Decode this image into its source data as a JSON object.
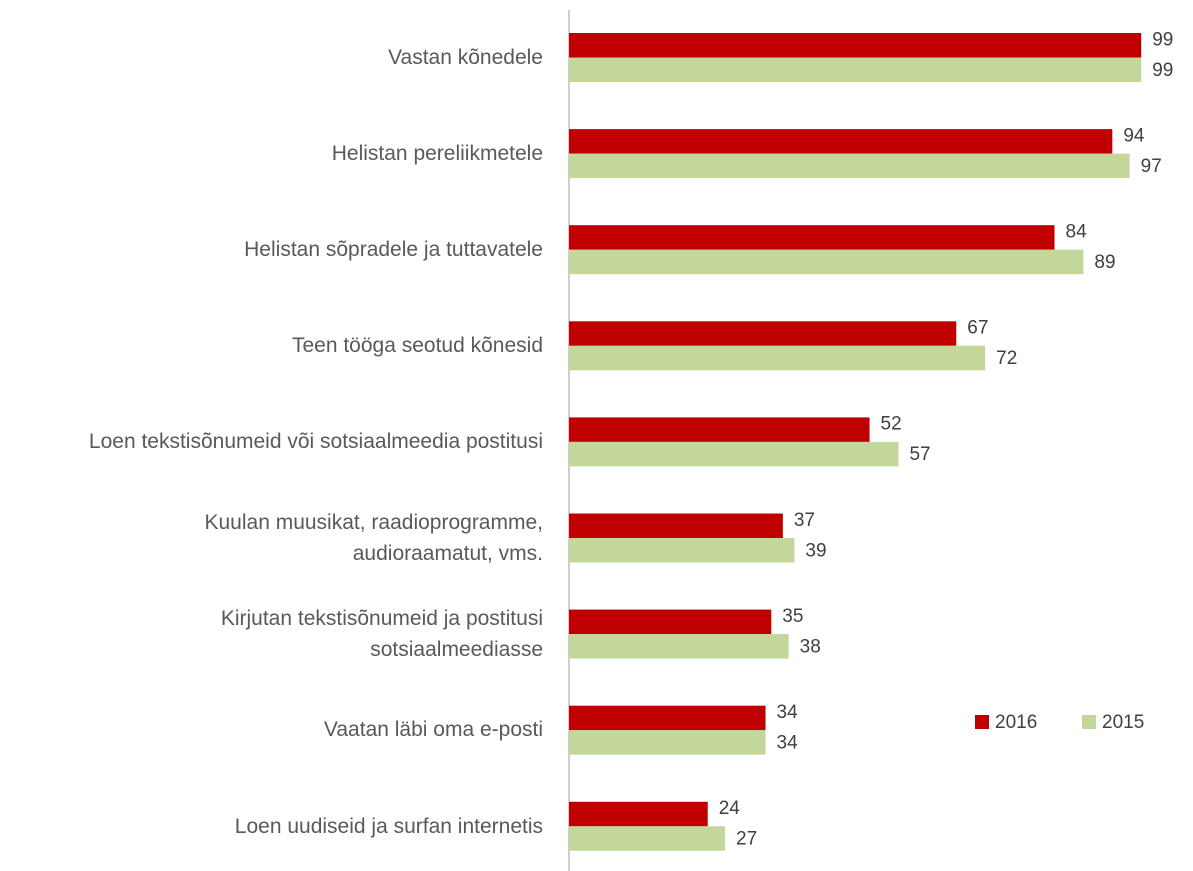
{
  "chart_data": {
    "type": "bar",
    "orientation": "horizontal",
    "categories": [
      "Vastan kõnedele",
      "Helistan pereliikmetele",
      "Helistan sõpradele ja tuttavatele",
      "Teen tööga seotud kõnesid",
      "Loen tekstisõnumeid või sotsiaalmeedia postitusi",
      "Kuulan muusikat, raadioprogramme,\naudioraamatut, vms.",
      "Kirjutan tekstisõnumeid ja postitusi\nsotsiaalmeediasse",
      "Vaatan läbi oma e-posti",
      "Loen uudiseid ja surfan internetis"
    ],
    "series": [
      {
        "name": "2016",
        "color": "#c00000",
        "values": [
          99,
          94,
          84,
          67,
          52,
          37,
          35,
          34,
          24
        ]
      },
      {
        "name": "2015",
        "color": "#c4d79b",
        "values": [
          99,
          97,
          89,
          72,
          57,
          39,
          38,
          34,
          27
        ]
      }
    ],
    "xlim": [
      0,
      100
    ],
    "legend": "lower right"
  }
}
